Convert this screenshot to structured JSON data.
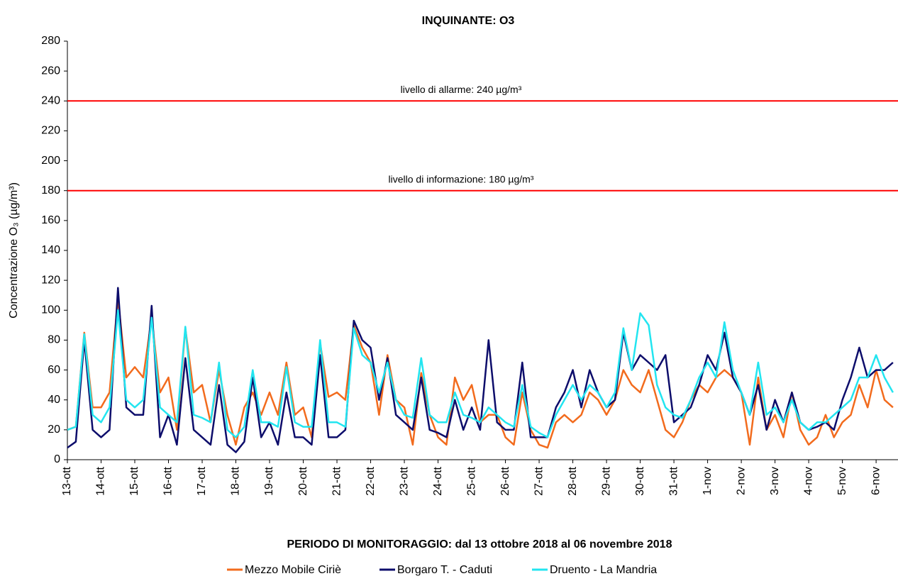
{
  "chart_data": {
    "type": "line",
    "title": "INQUINANTE: O3",
    "y_label": "Concentrazione O₃ (µg/m³)",
    "x_label": "PERIODO DI MONITORAGGIO: dal 13 ottobre 2018 al 06 novembre 2018",
    "x": [
      0,
      0.25,
      0.5,
      0.75,
      1,
      1.25,
      1.5,
      1.75,
      2,
      2.25,
      2.5,
      2.75,
      3,
      3.25,
      3.5,
      3.75,
      4,
      4.25,
      4.5,
      4.75,
      5,
      5.25,
      5.5,
      5.75,
      6,
      6.25,
      6.5,
      6.75,
      7,
      7.25,
      7.5,
      7.75,
      8,
      8.25,
      8.5,
      8.75,
      9,
      9.25,
      9.5,
      9.75,
      10,
      10.25,
      10.5,
      10.75,
      11,
      11.25,
      11.5,
      11.75,
      12,
      12.25,
      12.5,
      12.75,
      13,
      13.25,
      13.5,
      13.75,
      14,
      14.25,
      14.5,
      14.75,
      15,
      15.25,
      15.5,
      15.75,
      16,
      16.25,
      16.5,
      16.75,
      17,
      17.25,
      17.5,
      17.75,
      18,
      18.25,
      18.5,
      18.75,
      19,
      19.25,
      19.5,
      19.75,
      20,
      20.25,
      20.5,
      20.75,
      21,
      21.25,
      21.5,
      21.75,
      22,
      22.25,
      22.5,
      22.75,
      23,
      23.25,
      23.5,
      23.75,
      24,
      24.25,
      24.5
    ],
    "xlim": [
      0,
      24.65
    ],
    "xticks": [
      {
        "value": 0,
        "label": "13-ott"
      },
      {
        "value": 1,
        "label": "14-ott"
      },
      {
        "value": 2,
        "label": "15-ott"
      },
      {
        "value": 3,
        "label": "16-ott"
      },
      {
        "value": 4,
        "label": "17-ott"
      },
      {
        "value": 5,
        "label": "18-ott"
      },
      {
        "value": 6,
        "label": "19-ott"
      },
      {
        "value": 7,
        "label": "20-ott"
      },
      {
        "value": 8,
        "label": "21-ott"
      },
      {
        "value": 9,
        "label": "22-ott"
      },
      {
        "value": 10,
        "label": "23-ott"
      },
      {
        "value": 11,
        "label": "24-ott"
      },
      {
        "value": 12,
        "label": "25-ott"
      },
      {
        "value": 13,
        "label": "26-ott"
      },
      {
        "value": 14,
        "label": "27-ott"
      },
      {
        "value": 15,
        "label": "28-ott"
      },
      {
        "value": 16,
        "label": "29-ott"
      },
      {
        "value": 17,
        "label": "30-ott"
      },
      {
        "value": 18,
        "label": "31-ott"
      },
      {
        "value": 19,
        "label": "1-nov"
      },
      {
        "value": 20,
        "label": "2-nov"
      },
      {
        "value": 21,
        "label": "3-nov"
      },
      {
        "value": 22,
        "label": "4-nov"
      },
      {
        "value": 23,
        "label": "5-nov"
      },
      {
        "value": 24,
        "label": "6-nov"
      }
    ],
    "ylim": [
      0,
      280
    ],
    "yticks": [
      0,
      20,
      40,
      60,
      80,
      100,
      120,
      140,
      160,
      180,
      200,
      220,
      240,
      260,
      280
    ],
    "reference_lines": [
      {
        "value": 240,
        "label": "livello di allarme: 240 µg/m³",
        "color": "#ff0000"
      },
      {
        "value": 180,
        "label": "livello di informazione: 180 µg/m³",
        "color": "#ff0000"
      }
    ],
    "series": [
      {
        "name": "Mezzo Mobile Ciriè",
        "color": "#f26b1d",
        "values": [
          20,
          22,
          85,
          35,
          35,
          45,
          108,
          55,
          62,
          55,
          95,
          45,
          55,
          20,
          88,
          45,
          50,
          25,
          60,
          30,
          10,
          35,
          45,
          30,
          45,
          30,
          65,
          30,
          35,
          15,
          78,
          42,
          45,
          40,
          90,
          75,
          65,
          30,
          70,
          40,
          35,
          10,
          58,
          30,
          15,
          10,
          55,
          40,
          50,
          25,
          30,
          30,
          15,
          10,
          45,
          20,
          10,
          8,
          25,
          30,
          25,
          30,
          45,
          40,
          30,
          40,
          60,
          50,
          45,
          60,
          40,
          20,
          15,
          25,
          40,
          50,
          45,
          55,
          60,
          55,
          45,
          10,
          55,
          20,
          30,
          15,
          45,
          20,
          10,
          15,
          30,
          15,
          25,
          30,
          50,
          35,
          60,
          40,
          35
        ]
      },
      {
        "name": "Borgaro T. - Caduti",
        "color": "#0d0d6b",
        "values": [
          8,
          12,
          80,
          20,
          15,
          20,
          115,
          35,
          30,
          30,
          103,
          15,
          30,
          10,
          68,
          20,
          15,
          10,
          50,
          10,
          5,
          12,
          55,
          15,
          25,
          10,
          45,
          15,
          15,
          10,
          70,
          15,
          15,
          20,
          93,
          80,
          75,
          40,
          68,
          30,
          25,
          20,
          55,
          20,
          18,
          15,
          40,
          20,
          35,
          20,
          80,
          25,
          20,
          20,
          65,
          15,
          15,
          15,
          35,
          45,
          60,
          35,
          60,
          45,
          35,
          40,
          85,
          60,
          70,
          65,
          60,
          70,
          25,
          30,
          35,
          50,
          70,
          60,
          85,
          55,
          45,
          30,
          50,
          20,
          40,
          25,
          45,
          25,
          20,
          22,
          25,
          20,
          40,
          55,
          75,
          55,
          60,
          60,
          65
        ]
      },
      {
        "name": "Druento - La Mandria",
        "color": "#22e5f0",
        "values": [
          20,
          22,
          84,
          30,
          25,
          35,
          100,
          40,
          35,
          40,
          95,
          35,
          30,
          25,
          89,
          30,
          28,
          25,
          65,
          20,
          15,
          22,
          60,
          25,
          25,
          22,
          62,
          25,
          22,
          22,
          80,
          25,
          25,
          22,
          88,
          70,
          65,
          45,
          65,
          40,
          30,
          28,
          68,
          30,
          25,
          25,
          45,
          30,
          28,
          25,
          35,
          30,
          25,
          22,
          50,
          22,
          18,
          15,
          30,
          40,
          50,
          40,
          50,
          45,
          35,
          45,
          88,
          60,
          98,
          90,
          50,
          35,
          30,
          28,
          40,
          55,
          65,
          55,
          92,
          60,
          45,
          30,
          65,
          30,
          35,
          25,
          40,
          25,
          20,
          25,
          25,
          30,
          35,
          40,
          55,
          55,
          70,
          55,
          45
        ]
      }
    ],
    "grid": false,
    "legend": "bottom"
  }
}
